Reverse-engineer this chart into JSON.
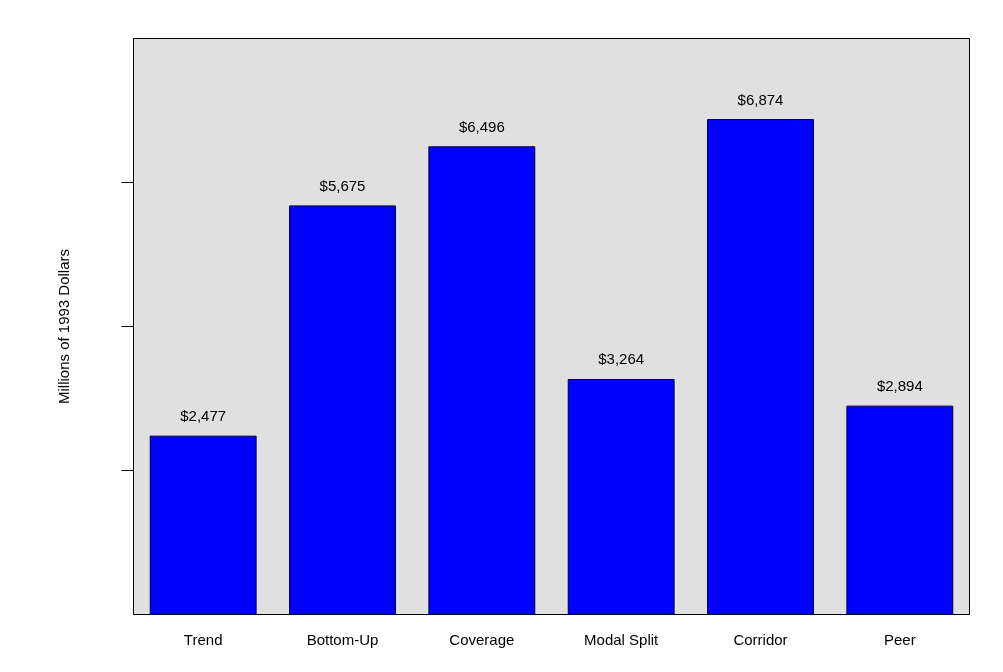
{
  "chart_data": {
    "type": "bar",
    "ylabel": "Millions of 1993 Dollars",
    "categories": [
      "Trend",
      "Bottom-Up",
      "Coverage",
      "Modal Split",
      "Corridor",
      "Peer"
    ],
    "values": [
      2477,
      5675,
      6496,
      3264,
      6874,
      2894
    ],
    "value_labels": [
      "$2,477",
      "$5,675",
      "$6,496",
      "$3,264",
      "$6,874",
      "$2,894"
    ],
    "color": "#0000ff",
    "ylim": [
      0,
      8000
    ],
    "yticks": [
      {
        "value": 2000,
        "label": null
      },
      {
        "value": 4000,
        "label": null
      },
      {
        "value": 6000,
        "label": null
      }
    ],
    "tick_labels": "x",
    "grid": false
  }
}
